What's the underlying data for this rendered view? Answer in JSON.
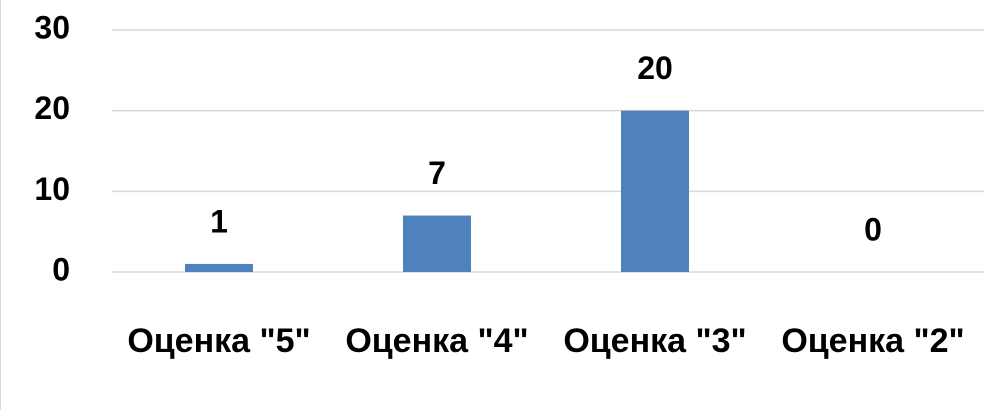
{
  "chart_data": {
    "type": "bar",
    "categories": [
      "Оценка \"5\"",
      "Оценка \"4\"",
      "Оценка \"3\"",
      "Оценка \"2\""
    ],
    "values": [
      1,
      7,
      20,
      0
    ],
    "color": "#4f81bd",
    "ylim": [
      0,
      30
    ],
    "yticks": [
      0,
      10,
      20,
      30
    ],
    "grid": true,
    "data_labels": true
  }
}
